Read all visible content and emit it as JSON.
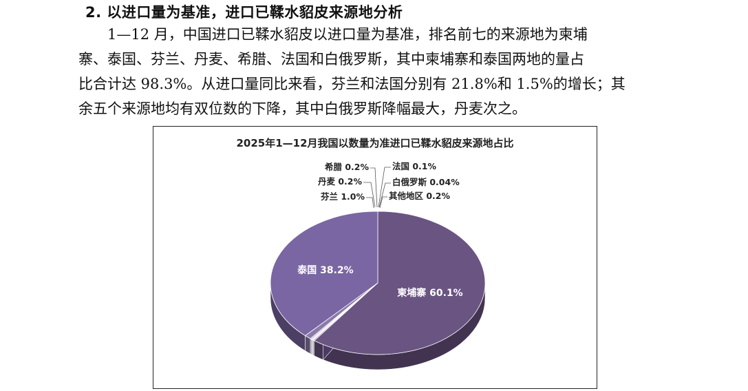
{
  "heading": "2. 以进口量为基准，进口已鞣水貂皮来源地分析",
  "paragraph_lines": [
    "1—12 月，中国进口已鞣水貂皮以进口量为基准，排名前七的来源地为柬埔",
    "寨、泰国、芬兰、丹麦、希腊、法国和白俄罗斯，其中柬埔寨和泰国两地的量占",
    "比合计达 98.3%。从进口量同比来看，芬兰和法国分别有 21.8%和 1.5%的增长；其",
    "余五个来源地均有双位数的下降，其中白俄罗斯降幅最大，丹麦次之。"
  ],
  "chart_data": {
    "type": "pie",
    "title": "2025年1—12月我国以数量为准进口已鞣水貂皮来源地占比",
    "slices": [
      {
        "label": "柬埔寨",
        "value": 60.1,
        "display": "柬埔寨 60.1%",
        "color": "#6a5482"
      },
      {
        "label": "其他地区",
        "value": 0.2,
        "display": "其他地区 0.2%",
        "color": "#9a8ab2"
      },
      {
        "label": "白俄罗斯",
        "value": 0.04,
        "display": "白俄罗斯 0.04%",
        "color": "#c8bedb"
      },
      {
        "label": "法国",
        "value": 0.1,
        "display": "法国 0.1%",
        "color": "#b2a6c8"
      },
      {
        "label": "希腊",
        "value": 0.2,
        "display": "希腊 0.2%",
        "color": "#d9d2e6"
      },
      {
        "label": "丹麦",
        "value": 0.2,
        "display": "丹麦 0.2%",
        "color": "#a898c0"
      },
      {
        "label": "芬兰",
        "value": 1.0,
        "display": "芬兰 1.0%",
        "color": "#8c7aaa"
      },
      {
        "label": "泰国",
        "value": 38.2,
        "display": "泰国 38.2%",
        "color": "#7a66a2"
      }
    ]
  }
}
